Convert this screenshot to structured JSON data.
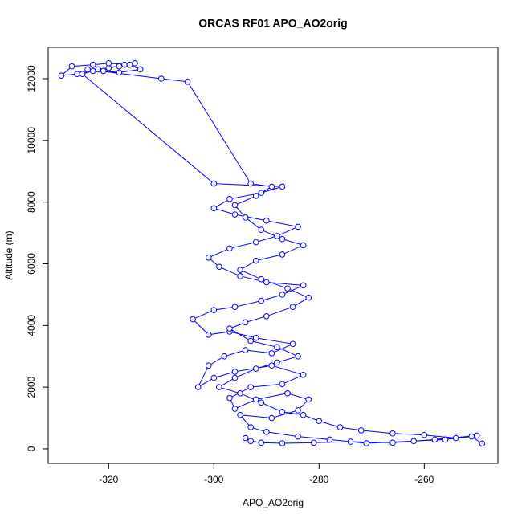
{
  "chart_data": {
    "type": "line",
    "title": "ORCAS RF01 APO_AO2orig",
    "xlabel": "APO_AO2orig",
    "ylabel": "Altitude (m)",
    "color": "#0000ff",
    "x": [
      -249,
      -251,
      -256,
      -262,
      -271,
      -278,
      -284,
      -290,
      -293,
      -295,
      -289,
      -284,
      -282,
      -286,
      -292,
      -296,
      -297,
      -293,
      -287,
      -283,
      -289,
      -296,
      -300,
      -303,
      -301,
      -298,
      -294,
      -289,
      -285,
      -292,
      -297,
      -301,
      -304,
      -300,
      -296,
      -291,
      -287,
      -283,
      -290,
      -295,
      -299,
      -301,
      -297,
      -292,
      -288,
      -284,
      -290,
      -296,
      -300,
      -297,
      -291,
      -287,
      -300,
      -325,
      -323,
      -320,
      -317,
      -315,
      -318,
      -322,
      -326,
      -329,
      -327,
      -323,
      -320,
      -316,
      -314,
      -318,
      -321,
      -324,
      -310,
      -305,
      -293,
      -289,
      -292,
      -296,
      -294,
      -291,
      -287,
      -283,
      -287,
      -292,
      -295,
      -291,
      -286,
      -282,
      -285,
      -290,
      -294,
      -297,
      -293,
      -288,
      -284,
      -288,
      -292,
      -296,
      -299,
      -295,
      -291,
      -287,
      -283,
      -280,
      -276,
      -272,
      -266,
      -260,
      -254,
      -250,
      -258,
      -266,
      -274,
      -281,
      -287,
      -291,
      -293,
      -294
    ],
    "values": [
      170,
      400,
      300,
      250,
      180,
      300,
      400,
      550,
      700,
      1100,
      1000,
      1250,
      1600,
      1800,
      1600,
      1300,
      1650,
      2000,
      2100,
      2400,
      2700,
      2500,
      2300,
      2000,
      2700,
      3000,
      3200,
      3100,
      3400,
      3600,
      3800,
      3700,
      4200,
      4500,
      4600,
      4800,
      5000,
      5300,
      5400,
      5600,
      5900,
      6200,
      6500,
      6700,
      6900,
      7200,
      7400,
      7600,
      7800,
      8100,
      8300,
      8500,
      8600,
      12150,
      12250,
      12350,
      12450,
      12500,
      12400,
      12300,
      12150,
      12100,
      12400,
      12450,
      12500,
      12450,
      12300,
      12200,
      12250,
      12300,
      12000,
      11900,
      8600,
      8500,
      8200,
      7900,
      7500,
      7100,
      6800,
      6600,
      6300,
      6100,
      5800,
      5500,
      5200,
      4900,
      4600,
      4300,
      4100,
      3900,
      3500,
      3300,
      3000,
      2800,
      2600,
      2300,
      2000,
      1800,
      1500,
      1200,
      1100,
      900,
      700,
      600,
      500,
      450,
      350,
      430,
      300,
      200,
      230,
      200,
      180,
      200,
      250,
      350
    ],
    "xlim": [
      -331.5,
      -246
    ],
    "ylim": [
      -470,
      13015
    ],
    "xticks": [
      -320,
      -300,
      -280,
      -260
    ],
    "yticks": [
      0,
      2000,
      4000,
      6000,
      8000,
      10000,
      12000
    ]
  }
}
